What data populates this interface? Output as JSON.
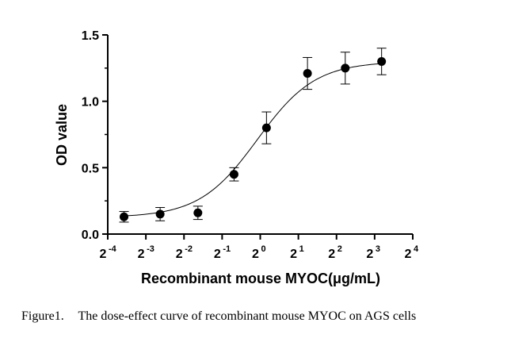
{
  "chart_data": {
    "type": "scatter",
    "title": "",
    "xlabel": "Recombinant mouse MYOC(μg/mL)",
    "ylabel": "OD value",
    "x_scale": "log2",
    "x_ticks": [
      {
        "base": "2",
        "exp": "-4",
        "value": 0.0625
      },
      {
        "base": "2",
        "exp": "-3",
        "value": 0.125
      },
      {
        "base": "2",
        "exp": "-2",
        "value": 0.25
      },
      {
        "base": "2",
        "exp": "-1",
        "value": 0.5
      },
      {
        "base": "2",
        "exp": "0",
        "value": 1
      },
      {
        "base": "2",
        "exp": "1",
        "value": 2
      },
      {
        "base": "2",
        "exp": "2",
        "value": 4
      },
      {
        "base": "2",
        "exp": "3",
        "value": 8
      },
      {
        "base": "2",
        "exp": "4",
        "value": 16
      }
    ],
    "y_ticks": [
      "0.0",
      "0.5",
      "1.0",
      "1.5"
    ],
    "xlim": [
      0.0625,
      16
    ],
    "ylim": [
      0,
      1.5
    ],
    "grid": false,
    "points": [
      {
        "x": 0.084,
        "y": 0.13,
        "err": 0.04
      },
      {
        "x": 0.162,
        "y": 0.15,
        "err": 0.05
      },
      {
        "x": 0.322,
        "y": 0.16,
        "err": 0.05
      },
      {
        "x": 0.621,
        "y": 0.45,
        "err": 0.05
      },
      {
        "x": 1.12,
        "y": 0.8,
        "err": 0.12
      },
      {
        "x": 2.36,
        "y": 1.21,
        "err": 0.12
      },
      {
        "x": 4.69,
        "y": 1.25,
        "err": 0.12
      },
      {
        "x": 9.08,
        "y": 1.3,
        "err": 0.1
      }
    ],
    "fit_curve": {
      "model": "4PL",
      "bottom": 0.125,
      "top": 1.3,
      "ec50": 0.95,
      "hill": 1.9
    }
  },
  "caption": {
    "label": "Figure1.",
    "text": "The dose-effect curve of recombinant mouse MYOC on AGS cells"
  }
}
